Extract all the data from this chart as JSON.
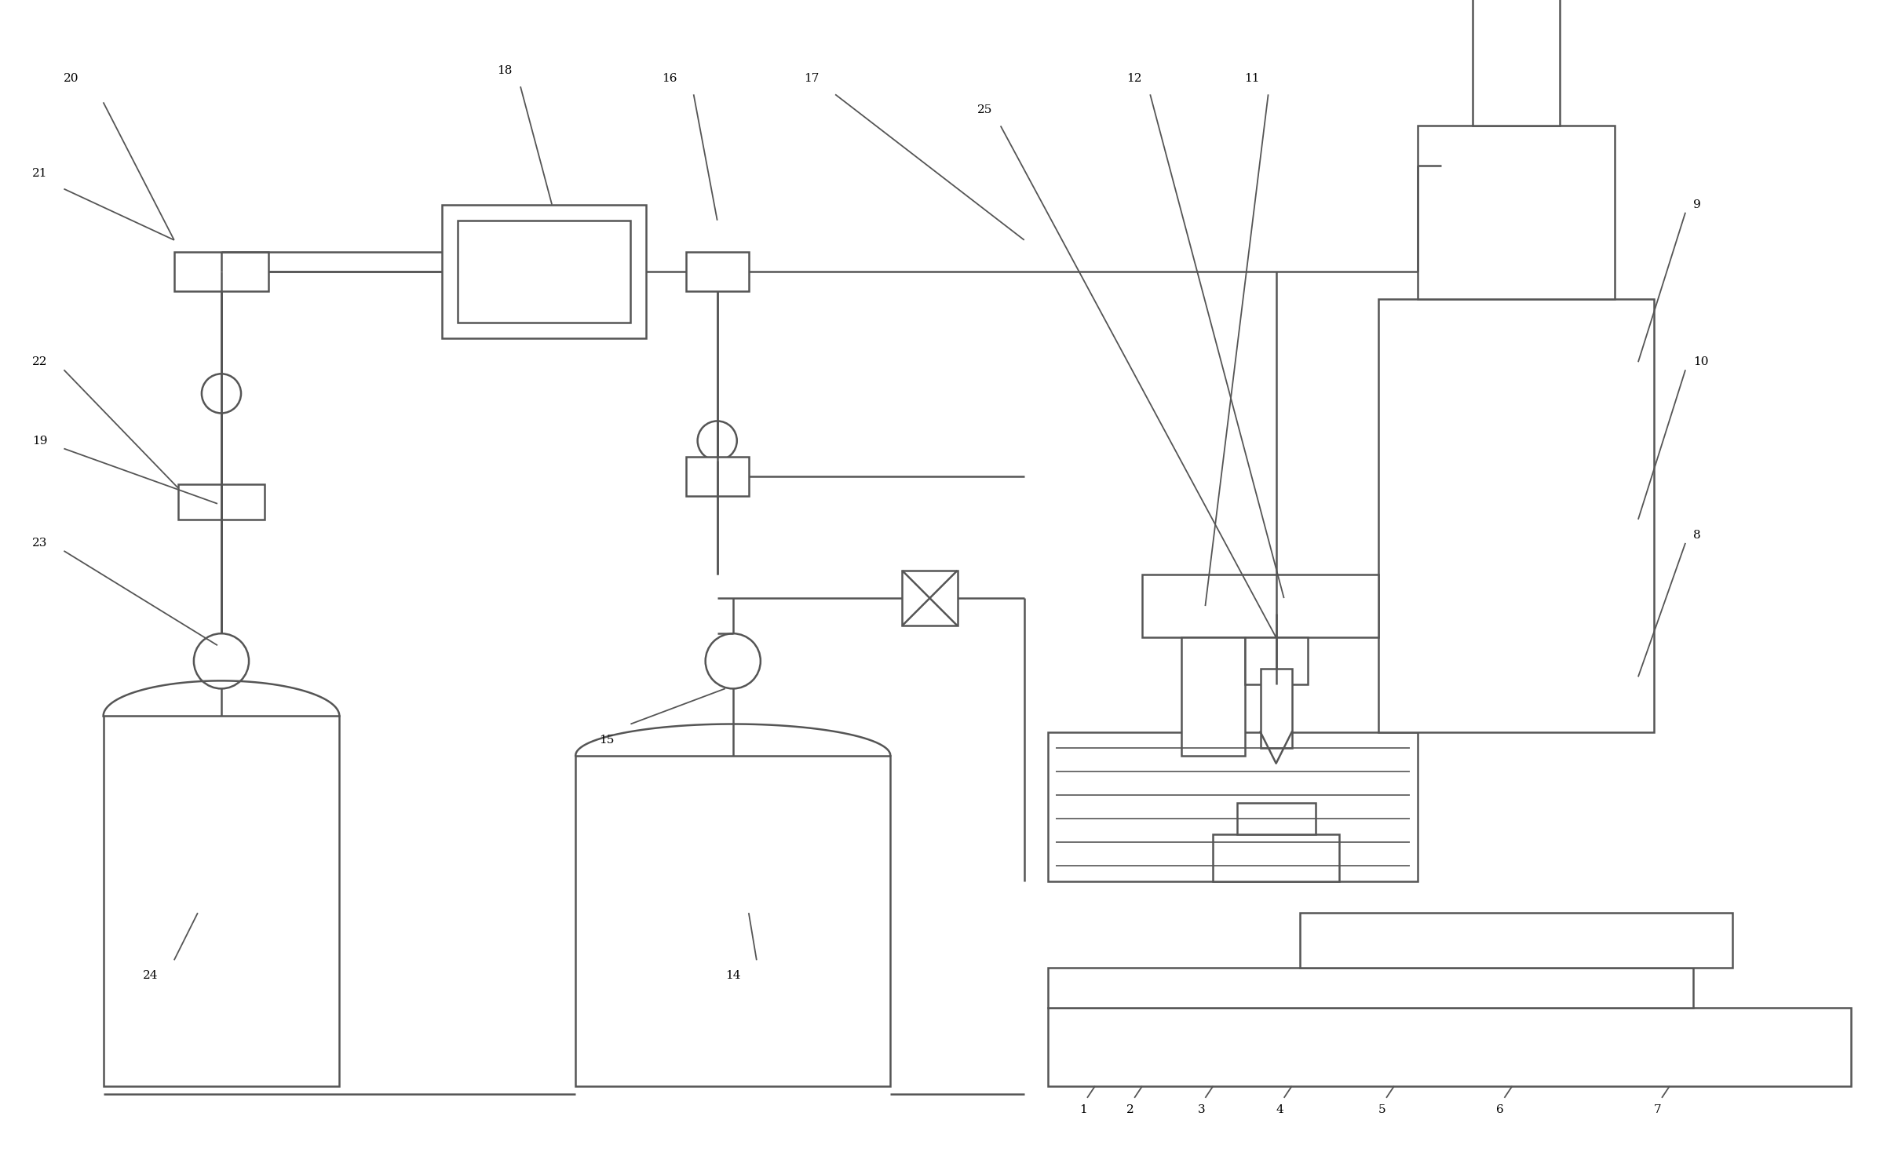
{
  "bg_color": "#ffffff",
  "lc": "#555555",
  "lw": 1.8,
  "fig_w": 24.09,
  "fig_h": 14.64
}
